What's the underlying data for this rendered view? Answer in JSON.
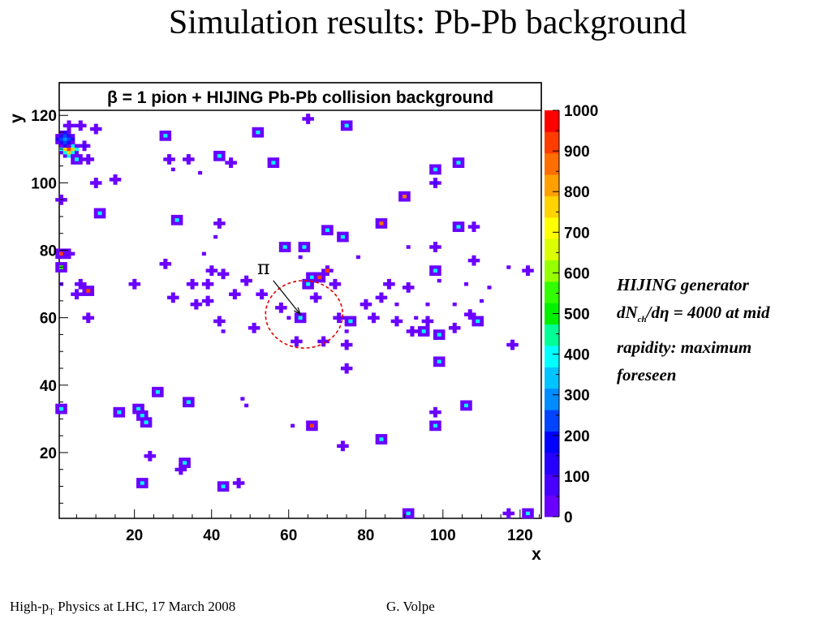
{
  "slide": {
    "title": "Simulation results: Pb-Pb background",
    "annotation": {
      "line1": "HIJING generator",
      "dn_prefix": "dN",
      "dn_sub": "ch",
      "dn_mid": "/d",
      "eta": "η",
      "dn_suffix": " = 4000 at mid",
      "line3": "rapidity: maximum",
      "line4": "foreseen"
    },
    "footer": {
      "left_prefix": "High-p",
      "left_sub": "T",
      "left_suffix": " Physics at LHC, 17 March 2008",
      "right": "G. Volpe"
    }
  },
  "chart_data": {
    "type": "heatmap",
    "title": "β = 1 pion + HIJING Pb-Pb collision background",
    "xlabel": "x",
    "ylabel": "y",
    "xlim": [
      0,
      124
    ],
    "ylim": [
      0,
      120
    ],
    "xticks": [
      20,
      40,
      60,
      80,
      100,
      120
    ],
    "yticks": [
      20,
      40,
      60,
      80,
      100,
      120
    ],
    "zlim": [
      0,
      1000
    ],
    "zticks": [
      0,
      100,
      200,
      300,
      400,
      500,
      600,
      700,
      800,
      900,
      1000
    ],
    "zlabels": [
      "0",
      "100",
      "200",
      "300",
      "400",
      "500",
      "600",
      "700",
      "800",
      "900",
      "1000"
    ],
    "colormap": [
      "#6a00ff",
      "#4800ff",
      "#2600ff",
      "#0000ff",
      "#0044ff",
      "#008cff",
      "#00c4ff",
      "#00ffff",
      "#00ff96",
      "#00f000",
      "#32ff00",
      "#96ff00",
      "#dcff00",
      "#ffff00",
      "#ffd200",
      "#ffa000",
      "#ff6e00",
      "#ff3c00",
      "#ff0000"
    ],
    "pion_label": "π",
    "pion_ring": {
      "center": [
        64,
        61
      ],
      "radius": 10,
      "color": "#e00000"
    },
    "pion_arrow": {
      "from": [
        56,
        71
      ],
      "to": [
        63,
        61
      ]
    },
    "clusters": [
      {
        "x": 3,
        "y": 110,
        "v": 950,
        "kind": "blob"
      },
      {
        "x": 5,
        "y": 107,
        "v": 420,
        "kind": "sq"
      },
      {
        "x": 2,
        "y": 113,
        "v": 300,
        "kind": "blob"
      },
      {
        "x": 7,
        "y": 111,
        "v": 60,
        "kind": "plus"
      },
      {
        "x": 8,
        "y": 107,
        "v": 40,
        "kind": "plus"
      },
      {
        "x": 3,
        "y": 117,
        "v": 30,
        "kind": "plus"
      },
      {
        "x": 6,
        "y": 117,
        "v": 40,
        "kind": "plus"
      },
      {
        "x": 10,
        "y": 116,
        "v": 30,
        "kind": "plus"
      },
      {
        "x": 1,
        "y": 95,
        "v": 30,
        "kind": "plus"
      },
      {
        "x": 10,
        "y": 100,
        "v": 40,
        "kind": "plus"
      },
      {
        "x": 15,
        "y": 101,
        "v": 40,
        "kind": "plus"
      },
      {
        "x": 11,
        "y": 91,
        "v": 420,
        "kind": "sq"
      },
      {
        "x": 28,
        "y": 114,
        "v": 420,
        "kind": "sq"
      },
      {
        "x": 29,
        "y": 107,
        "v": 50,
        "kind": "plus"
      },
      {
        "x": 34,
        "y": 107,
        "v": 40,
        "kind": "plus"
      },
      {
        "x": 30,
        "y": 104,
        "v": 20,
        "kind": "dot"
      },
      {
        "x": 37,
        "y": 103,
        "v": 20,
        "kind": "dot"
      },
      {
        "x": 42,
        "y": 108,
        "v": 420,
        "kind": "sq"
      },
      {
        "x": 45,
        "y": 106,
        "v": 40,
        "kind": "plus"
      },
      {
        "x": 52,
        "y": 115,
        "v": 420,
        "kind": "sq"
      },
      {
        "x": 56,
        "y": 106,
        "v": 420,
        "kind": "sq"
      },
      {
        "x": 65,
        "y": 119,
        "v": 40,
        "kind": "plus"
      },
      {
        "x": 75,
        "y": 117,
        "v": 420,
        "kind": "sq"
      },
      {
        "x": 31,
        "y": 89,
        "v": 420,
        "kind": "sq"
      },
      {
        "x": 42,
        "y": 88,
        "v": 50,
        "kind": "plus"
      },
      {
        "x": 41,
        "y": 84,
        "v": 20,
        "kind": "dot"
      },
      {
        "x": 59,
        "y": 81,
        "v": 420,
        "kind": "sq"
      },
      {
        "x": 64,
        "y": 81,
        "v": 420,
        "kind": "sq"
      },
      {
        "x": 70,
        "y": 86,
        "v": 420,
        "kind": "sq"
      },
      {
        "x": 74,
        "y": 84,
        "v": 420,
        "kind": "sq"
      },
      {
        "x": 84,
        "y": 88,
        "v": 900,
        "kind": "sq"
      },
      {
        "x": 90,
        "y": 96,
        "v": 900,
        "kind": "sq"
      },
      {
        "x": 98,
        "y": 104,
        "v": 420,
        "kind": "sq"
      },
      {
        "x": 98,
        "y": 100,
        "v": 60,
        "kind": "plus"
      },
      {
        "x": 104,
        "y": 106,
        "v": 420,
        "kind": "sq"
      },
      {
        "x": 104,
        "y": 87,
        "v": 420,
        "kind": "sq"
      },
      {
        "x": 108,
        "y": 87,
        "v": 40,
        "kind": "plus"
      },
      {
        "x": 98,
        "y": 81,
        "v": 40,
        "kind": "plus"
      },
      {
        "x": 98,
        "y": 74,
        "v": 420,
        "kind": "sq"
      },
      {
        "x": 91,
        "y": 81,
        "v": 20,
        "kind": "dot"
      },
      {
        "x": 108,
        "y": 77,
        "v": 40,
        "kind": "plus"
      },
      {
        "x": 117,
        "y": 75,
        "v": 20,
        "kind": "dot"
      },
      {
        "x": 122,
        "y": 74,
        "v": 40,
        "kind": "plus"
      },
      {
        "x": 78,
        "y": 78,
        "v": 20,
        "kind": "dot"
      },
      {
        "x": 63,
        "y": 78,
        "v": 20,
        "kind": "dot"
      },
      {
        "x": 38,
        "y": 79,
        "v": 20,
        "kind": "dot"
      },
      {
        "x": 1,
        "y": 79,
        "v": 950,
        "kind": "sq"
      },
      {
        "x": 1,
        "y": 75,
        "v": 600,
        "kind": "sq"
      },
      {
        "x": 3,
        "y": 79,
        "v": 40,
        "kind": "plus"
      },
      {
        "x": 6,
        "y": 70,
        "v": 40,
        "kind": "plus"
      },
      {
        "x": 8,
        "y": 68,
        "v": 950,
        "kind": "sq"
      },
      {
        "x": 5,
        "y": 67,
        "v": 40,
        "kind": "plus"
      },
      {
        "x": 8,
        "y": 60,
        "v": 40,
        "kind": "plus"
      },
      {
        "x": 1,
        "y": 70,
        "v": 20,
        "kind": "dot"
      },
      {
        "x": 28,
        "y": 76,
        "v": 40,
        "kind": "plus"
      },
      {
        "x": 20,
        "y": 70,
        "v": 40,
        "kind": "plus"
      },
      {
        "x": 30,
        "y": 66,
        "v": 40,
        "kind": "plus"
      },
      {
        "x": 35,
        "y": 70,
        "v": 40,
        "kind": "plus"
      },
      {
        "x": 39,
        "y": 70,
        "v": 40,
        "kind": "plus"
      },
      {
        "x": 40,
        "y": 74,
        "v": 40,
        "kind": "plus"
      },
      {
        "x": 43,
        "y": 73,
        "v": 40,
        "kind": "plus"
      },
      {
        "x": 39,
        "y": 65,
        "v": 40,
        "kind": "plus"
      },
      {
        "x": 36,
        "y": 64,
        "v": 40,
        "kind": "plus"
      },
      {
        "x": 46,
        "y": 67,
        "v": 40,
        "kind": "plus"
      },
      {
        "x": 49,
        "y": 71,
        "v": 40,
        "kind": "plus"
      },
      {
        "x": 42,
        "y": 59,
        "v": 40,
        "kind": "plus"
      },
      {
        "x": 43,
        "y": 56,
        "v": 20,
        "kind": "dot"
      },
      {
        "x": 51,
        "y": 57,
        "v": 40,
        "kind": "plus"
      },
      {
        "x": 53,
        "y": 67,
        "v": 40,
        "kind": "plus"
      },
      {
        "x": 58,
        "y": 63,
        "v": 40,
        "kind": "plus"
      },
      {
        "x": 60,
        "y": 60,
        "v": 20,
        "kind": "dot"
      },
      {
        "x": 63,
        "y": 60,
        "v": 420,
        "kind": "sq"
      },
      {
        "x": 66,
        "y": 72,
        "v": 420,
        "kind": "sq"
      },
      {
        "x": 65,
        "y": 70,
        "v": 420,
        "kind": "sq"
      },
      {
        "x": 68,
        "y": 72,
        "v": 950,
        "kind": "sq"
      },
      {
        "x": 70,
        "y": 74,
        "v": 950,
        "kind": "plus"
      },
      {
        "x": 67,
        "y": 66,
        "v": 40,
        "kind": "plus"
      },
      {
        "x": 72,
        "y": 70,
        "v": 40,
        "kind": "plus"
      },
      {
        "x": 73,
        "y": 60,
        "v": 40,
        "kind": "plus"
      },
      {
        "x": 76,
        "y": 59,
        "v": 420,
        "kind": "sq"
      },
      {
        "x": 69,
        "y": 53,
        "v": 40,
        "kind": "plus"
      },
      {
        "x": 62,
        "y": 53,
        "v": 40,
        "kind": "plus"
      },
      {
        "x": 75,
        "y": 52,
        "v": 40,
        "kind": "plus"
      },
      {
        "x": 75,
        "y": 45,
        "v": 40,
        "kind": "plus"
      },
      {
        "x": 75,
        "y": 56,
        "v": 20,
        "kind": "dot"
      },
      {
        "x": 80,
        "y": 64,
        "v": 40,
        "kind": "plus"
      },
      {
        "x": 84,
        "y": 66,
        "v": 40,
        "kind": "plus"
      },
      {
        "x": 82,
        "y": 60,
        "v": 40,
        "kind": "plus"
      },
      {
        "x": 86,
        "y": 70,
        "v": 40,
        "kind": "plus"
      },
      {
        "x": 91,
        "y": 69,
        "v": 40,
        "kind": "plus"
      },
      {
        "x": 88,
        "y": 64,
        "v": 20,
        "kind": "dot"
      },
      {
        "x": 93,
        "y": 60,
        "v": 20,
        "kind": "dot"
      },
      {
        "x": 96,
        "y": 64,
        "v": 20,
        "kind": "dot"
      },
      {
        "x": 92,
        "y": 56,
        "v": 40,
        "kind": "plus"
      },
      {
        "x": 88,
        "y": 59,
        "v": 40,
        "kind": "plus"
      },
      {
        "x": 96,
        "y": 59,
        "v": 40,
        "kind": "plus"
      },
      {
        "x": 95,
        "y": 56,
        "v": 420,
        "kind": "sq"
      },
      {
        "x": 99,
        "y": 55,
        "v": 420,
        "kind": "sq"
      },
      {
        "x": 103,
        "y": 57,
        "v": 40,
        "kind": "plus"
      },
      {
        "x": 107,
        "y": 61,
        "v": 40,
        "kind": "plus"
      },
      {
        "x": 109,
        "y": 59,
        "v": 420,
        "kind": "sq"
      },
      {
        "x": 103,
        "y": 64,
        "v": 20,
        "kind": "dot"
      },
      {
        "x": 110,
        "y": 65,
        "v": 20,
        "kind": "dot"
      },
      {
        "x": 112,
        "y": 69,
        "v": 20,
        "kind": "dot"
      },
      {
        "x": 106,
        "y": 70,
        "v": 20,
        "kind": "dot"
      },
      {
        "x": 99,
        "y": 71,
        "v": 20,
        "kind": "dot"
      },
      {
        "x": 118,
        "y": 52,
        "v": 40,
        "kind": "plus"
      },
      {
        "x": 99,
        "y": 47,
        "v": 420,
        "kind": "sq"
      },
      {
        "x": 26,
        "y": 38,
        "v": 420,
        "kind": "sq"
      },
      {
        "x": 34,
        "y": 35,
        "v": 420,
        "kind": "sq"
      },
      {
        "x": 48,
        "y": 36,
        "v": 20,
        "kind": "dot"
      },
      {
        "x": 49,
        "y": 34,
        "v": 20,
        "kind": "dot"
      },
      {
        "x": 1,
        "y": 33,
        "v": 420,
        "kind": "sq"
      },
      {
        "x": 16,
        "y": 32,
        "v": 420,
        "kind": "sq"
      },
      {
        "x": 21,
        "y": 33,
        "v": 420,
        "kind": "sq"
      },
      {
        "x": 22,
        "y": 31,
        "v": 420,
        "kind": "sq"
      },
      {
        "x": 23,
        "y": 29,
        "v": 420,
        "kind": "sq"
      },
      {
        "x": 24,
        "y": 19,
        "v": 40,
        "kind": "plus"
      },
      {
        "x": 33,
        "y": 17,
        "v": 420,
        "kind": "sq"
      },
      {
        "x": 32,
        "y": 15,
        "v": 40,
        "kind": "plus"
      },
      {
        "x": 22,
        "y": 11,
        "v": 420,
        "kind": "sq"
      },
      {
        "x": 43,
        "y": 10,
        "v": 420,
        "kind": "sq"
      },
      {
        "x": 47,
        "y": 11,
        "v": 40,
        "kind": "plus"
      },
      {
        "x": 61,
        "y": 28,
        "v": 20,
        "kind": "dot"
      },
      {
        "x": 66,
        "y": 28,
        "v": 950,
        "kind": "sq"
      },
      {
        "x": 74,
        "y": 22,
        "v": 40,
        "kind": "plus"
      },
      {
        "x": 84,
        "y": 24,
        "v": 420,
        "kind": "sq"
      },
      {
        "x": 98,
        "y": 28,
        "v": 420,
        "kind": "sq"
      },
      {
        "x": 98,
        "y": 32,
        "v": 40,
        "kind": "plus"
      },
      {
        "x": 106,
        "y": 34,
        "v": 420,
        "kind": "sq"
      },
      {
        "x": 91,
        "y": 2,
        "v": 420,
        "kind": "sq"
      },
      {
        "x": 117,
        "y": 2,
        "v": 40,
        "kind": "plus"
      },
      {
        "x": 122,
        "y": 2,
        "v": 420,
        "kind": "sq"
      }
    ]
  }
}
